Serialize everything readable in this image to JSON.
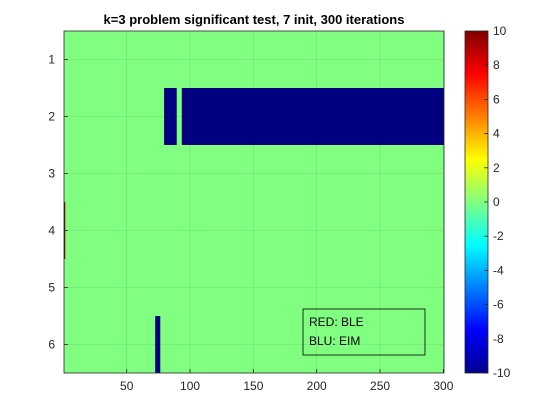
{
  "chart_data": {
    "type": "heatmap",
    "title": "k=3 problem significant test, 7 init, 300 iterations",
    "xlabel": "",
    "ylabel": "",
    "xlim": [
      0.5,
      300.5
    ],
    "ylim": [
      0.5,
      6.5
    ],
    "x_ticks": [
      50,
      100,
      150,
      200,
      250,
      300
    ],
    "y_ticks": [
      1,
      2,
      3,
      4,
      5,
      6
    ],
    "grid": true,
    "colormap": "jet",
    "clim": [
      -10,
      10
    ],
    "colorbar_ticks": [
      10,
      8,
      6,
      4,
      2,
      0,
      -2,
      -4,
      -6,
      -8,
      -10
    ],
    "background_value": 0,
    "cells": [
      {
        "row": 2,
        "x_start": 80,
        "x_end": 89,
        "value": -10
      },
      {
        "row": 2,
        "x_start": 94,
        "x_end": 300,
        "value": -10
      },
      {
        "row": 4,
        "x_start": 1,
        "x_end": 1,
        "value": 10
      },
      {
        "row": 6,
        "x_start": 73,
        "x_end": 76,
        "value": -10
      }
    ],
    "annotation_lines": [
      "RED: BLE",
      "BLU: EIM"
    ]
  }
}
